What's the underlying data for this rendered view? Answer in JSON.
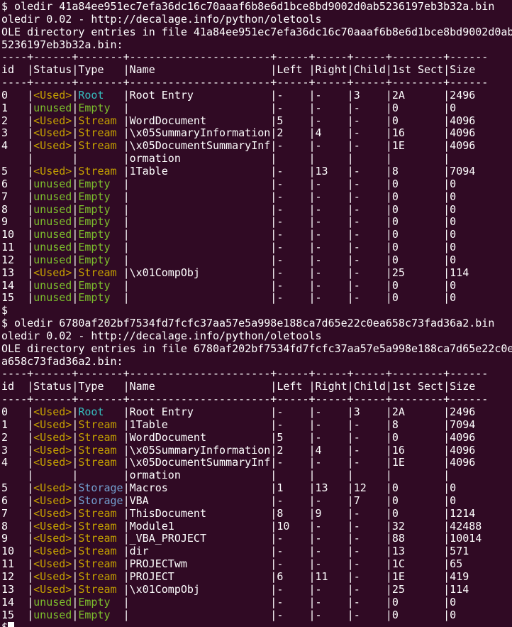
{
  "terminal": {
    "colors": {
      "background": "#300A24",
      "foreground": "#FFFFFF",
      "yellow": "#C4A000",
      "green": "#7CBE2C",
      "cyan": "#35BDBD",
      "blue": "#729FCF"
    },
    "lines": [
      [
        {
          "t": "$ oledir 41a84ee951ec7efa36dc16c70aaaf6b8e6d1bce8bd9002d0ab5236197eb3b32a.bin"
        }
      ],
      [
        {
          "t": "oledir 0.02 - http://decalage.info/python/oletools"
        }
      ],
      [
        {
          "t": "OLE directory entries in file 41a84ee951ec7efa36dc16c70aaaf6b8e6d1bce8bd9002d0ab"
        }
      ],
      [
        {
          "t": "5236197eb3b32a.bin:"
        }
      ],
      [
        {
          "t": "----+------+-------+----------------------+-----+-----+-----+--------+------"
        }
      ],
      [
        {
          "t": "id  |Status|Type   |Name                  |Left |Right|Child|1st Sect|Size"
        }
      ],
      [
        {
          "t": "----+------+-------+----------------------+-----+-----+-----+--------+------"
        }
      ],
      [
        {
          "t": "0   |"
        },
        {
          "t": "<Used>",
          "c": "yellow"
        },
        {
          "t": "|"
        },
        {
          "t": "Root",
          "c": "cyan"
        },
        {
          "t": "   |Root Entry            |-    |-    |3    |2A      |2496"
        }
      ],
      [
        {
          "t": "1   |"
        },
        {
          "t": "unused",
          "c": "green"
        },
        {
          "t": "|"
        },
        {
          "t": "Empty",
          "c": "green"
        },
        {
          "t": "  |                      |-    |-    |-    |0       |0"
        }
      ],
      [
        {
          "t": "2   |"
        },
        {
          "t": "<Used>",
          "c": "yellow"
        },
        {
          "t": "|"
        },
        {
          "t": "Stream",
          "c": "yellow"
        },
        {
          "t": " |WordDocument          |5    |-    |-    |0       |4096"
        }
      ],
      [
        {
          "t": "3   |"
        },
        {
          "t": "<Used>",
          "c": "yellow"
        },
        {
          "t": "|"
        },
        {
          "t": "Stream",
          "c": "yellow"
        },
        {
          "t": " |\\x05SummaryInformation|2    |4    |-    |16      |4096"
        }
      ],
      [
        {
          "t": "4   |"
        },
        {
          "t": "<Used>",
          "c": "yellow"
        },
        {
          "t": "|"
        },
        {
          "t": "Stream",
          "c": "yellow"
        },
        {
          "t": " |\\x05DocumentSummaryInf|-    |-    |-    |1E      |4096"
        }
      ],
      [
        {
          "t": "    |      |       |ormation              |     |     |     |        |"
        }
      ],
      [
        {
          "t": "5   |"
        },
        {
          "t": "<Used>",
          "c": "yellow"
        },
        {
          "t": "|"
        },
        {
          "t": "Stream",
          "c": "yellow"
        },
        {
          "t": " |1Table                |-    |13   |-    |8       |7094"
        }
      ],
      [
        {
          "t": "6   |"
        },
        {
          "t": "unused",
          "c": "green"
        },
        {
          "t": "|"
        },
        {
          "t": "Empty",
          "c": "green"
        },
        {
          "t": "  |                      |-    |-    |-    |0       |0"
        }
      ],
      [
        {
          "t": "7   |"
        },
        {
          "t": "unused",
          "c": "green"
        },
        {
          "t": "|"
        },
        {
          "t": "Empty",
          "c": "green"
        },
        {
          "t": "  |                      |-    |-    |-    |0       |0"
        }
      ],
      [
        {
          "t": "8   |"
        },
        {
          "t": "unused",
          "c": "green"
        },
        {
          "t": "|"
        },
        {
          "t": "Empty",
          "c": "green"
        },
        {
          "t": "  |                      |-    |-    |-    |0       |0"
        }
      ],
      [
        {
          "t": "9   |"
        },
        {
          "t": "unused",
          "c": "green"
        },
        {
          "t": "|"
        },
        {
          "t": "Empty",
          "c": "green"
        },
        {
          "t": "  |                      |-    |-    |-    |0       |0"
        }
      ],
      [
        {
          "t": "10  |"
        },
        {
          "t": "unused",
          "c": "green"
        },
        {
          "t": "|"
        },
        {
          "t": "Empty",
          "c": "green"
        },
        {
          "t": "  |                      |-    |-    |-    |0       |0"
        }
      ],
      [
        {
          "t": "11  |"
        },
        {
          "t": "unused",
          "c": "green"
        },
        {
          "t": "|"
        },
        {
          "t": "Empty",
          "c": "green"
        },
        {
          "t": "  |                      |-    |-    |-    |0       |0"
        }
      ],
      [
        {
          "t": "12  |"
        },
        {
          "t": "unused",
          "c": "green"
        },
        {
          "t": "|"
        },
        {
          "t": "Empty",
          "c": "green"
        },
        {
          "t": "  |                      |-    |-    |-    |0       |0"
        }
      ],
      [
        {
          "t": "13  |"
        },
        {
          "t": "<Used>",
          "c": "yellow"
        },
        {
          "t": "|"
        },
        {
          "t": "Stream",
          "c": "yellow"
        },
        {
          "t": " |\\x01CompObj           |-    |-    |-    |25      |114"
        }
      ],
      [
        {
          "t": "14  |"
        },
        {
          "t": "unused",
          "c": "green"
        },
        {
          "t": "|"
        },
        {
          "t": "Empty",
          "c": "green"
        },
        {
          "t": "  |                      |-    |-    |-    |0       |0"
        }
      ],
      [
        {
          "t": "15  |"
        },
        {
          "t": "unused",
          "c": "green"
        },
        {
          "t": "|"
        },
        {
          "t": "Empty",
          "c": "green"
        },
        {
          "t": "  |                      |-    |-    |-    |0       |0"
        }
      ],
      [
        {
          "t": "$"
        }
      ],
      [
        {
          "t": "$ oledir 6780af202bf7534fd7fcfc37aa57e5a998e188ca7d65e22c0ea658c73fad36a2.bin"
        }
      ],
      [
        {
          "t": "oledir 0.02 - http://decalage.info/python/oletools"
        }
      ],
      [
        {
          "t": "OLE directory entries in file 6780af202bf7534fd7fcfc37aa57e5a998e188ca7d65e22c0e"
        }
      ],
      [
        {
          "t": "a658c73fad36a2.bin:"
        }
      ],
      [
        {
          "t": "----+------+-------+----------------------+-----+-----+-----+--------+------"
        }
      ],
      [
        {
          "t": "id  |Status|Type   |Name                  |Left |Right|Child|1st Sect|Size"
        }
      ],
      [
        {
          "t": "----+------+-------+----------------------+-----+-----+-----+--------+------"
        }
      ],
      [
        {
          "t": "0   |"
        },
        {
          "t": "<Used>",
          "c": "yellow"
        },
        {
          "t": "|"
        },
        {
          "t": "Root",
          "c": "cyan"
        },
        {
          "t": "   |Root Entry            |-    |-    |3    |2A      |2496"
        }
      ],
      [
        {
          "t": "1   |"
        },
        {
          "t": "<Used>",
          "c": "yellow"
        },
        {
          "t": "|"
        },
        {
          "t": "Stream",
          "c": "yellow"
        },
        {
          "t": " |1Table                |-    |-    |-    |8       |7094"
        }
      ],
      [
        {
          "t": "2   |"
        },
        {
          "t": "<Used>",
          "c": "yellow"
        },
        {
          "t": "|"
        },
        {
          "t": "Stream",
          "c": "yellow"
        },
        {
          "t": " |WordDocument          |5    |-    |-    |0       |4096"
        }
      ],
      [
        {
          "t": "3   |"
        },
        {
          "t": "<Used>",
          "c": "yellow"
        },
        {
          "t": "|"
        },
        {
          "t": "Stream",
          "c": "yellow"
        },
        {
          "t": " |\\x05SummaryInformation|2    |4    |-    |16      |4096"
        }
      ],
      [
        {
          "t": "4   |"
        },
        {
          "t": "<Used>",
          "c": "yellow"
        },
        {
          "t": "|"
        },
        {
          "t": "Stream",
          "c": "yellow"
        },
        {
          "t": " |\\x05DocumentSummaryInf|-    |-    |-    |1E      |4096"
        }
      ],
      [
        {
          "t": "    |      |       |ormation              |     |     |     |        |"
        }
      ],
      [
        {
          "t": "5   |"
        },
        {
          "t": "<Used>",
          "c": "yellow"
        },
        {
          "t": "|"
        },
        {
          "t": "Storage",
          "c": "blue"
        },
        {
          "t": "|Macros                |1    |13   |12   |0       |0"
        }
      ],
      [
        {
          "t": "6   |"
        },
        {
          "t": "<Used>",
          "c": "yellow"
        },
        {
          "t": "|"
        },
        {
          "t": "Storage",
          "c": "blue"
        },
        {
          "t": "|VBA                   |-    |-    |7    |0       |0"
        }
      ],
      [
        {
          "t": "7   |"
        },
        {
          "t": "<Used>",
          "c": "yellow"
        },
        {
          "t": "|"
        },
        {
          "t": "Stream",
          "c": "yellow"
        },
        {
          "t": " |ThisDocument          |8    |9    |-    |0       |1214"
        }
      ],
      [
        {
          "t": "8   |"
        },
        {
          "t": "<Used>",
          "c": "yellow"
        },
        {
          "t": "|"
        },
        {
          "t": "Stream",
          "c": "yellow"
        },
        {
          "t": " |Module1               |10   |-    |-    |32      |42488"
        }
      ],
      [
        {
          "t": "9   |"
        },
        {
          "t": "<Used>",
          "c": "yellow"
        },
        {
          "t": "|"
        },
        {
          "t": "Stream",
          "c": "yellow"
        },
        {
          "t": " |_VBA_PROJECT          |-    |-    |-    |88      |10014"
        }
      ],
      [
        {
          "t": "10  |"
        },
        {
          "t": "<Used>",
          "c": "yellow"
        },
        {
          "t": "|"
        },
        {
          "t": "Stream",
          "c": "yellow"
        },
        {
          "t": " |dir                   |-    |-    |-    |13      |571"
        }
      ],
      [
        {
          "t": "11  |"
        },
        {
          "t": "<Used>",
          "c": "yellow"
        },
        {
          "t": "|"
        },
        {
          "t": "Stream",
          "c": "yellow"
        },
        {
          "t": " |PROJECTwm             |-    |-    |-    |1C      |65"
        }
      ],
      [
        {
          "t": "12  |"
        },
        {
          "t": "<Used>",
          "c": "yellow"
        },
        {
          "t": "|"
        },
        {
          "t": "Stream",
          "c": "yellow"
        },
        {
          "t": " |PROJECT               |6    |11   |-    |1E      |419"
        }
      ],
      [
        {
          "t": "13  |"
        },
        {
          "t": "<Used>",
          "c": "yellow"
        },
        {
          "t": "|"
        },
        {
          "t": "Stream",
          "c": "yellow"
        },
        {
          "t": " |\\x01CompObj           |-    |-    |-    |25      |114"
        }
      ],
      [
        {
          "t": "14  |"
        },
        {
          "t": "unused",
          "c": "green"
        },
        {
          "t": "|"
        },
        {
          "t": "Empty",
          "c": "green"
        },
        {
          "t": "  |                      |-    |-    |-    |0       |0"
        }
      ],
      [
        {
          "t": "15  |"
        },
        {
          "t": "unused",
          "c": "green"
        },
        {
          "t": "|"
        },
        {
          "t": "Empty",
          "c": "green"
        },
        {
          "t": "  |                      |-    |-    |-    |0       |0"
        }
      ],
      [
        {
          "t": "$"
        },
        {
          "t": " ",
          "cursor": true
        }
      ]
    ]
  }
}
